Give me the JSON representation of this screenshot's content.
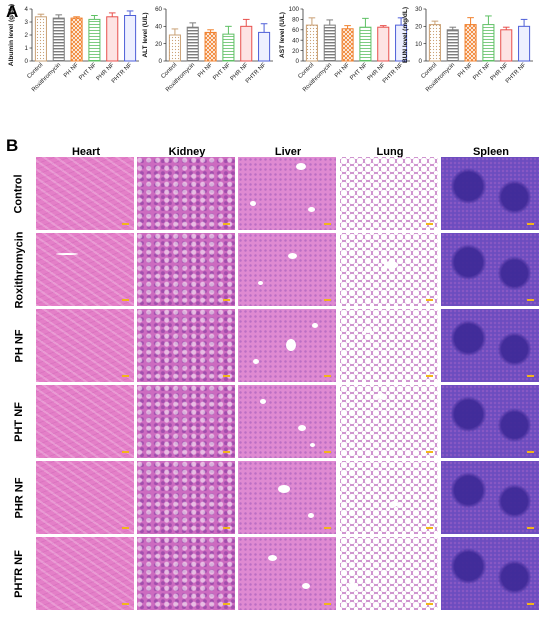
{
  "panel_a_label": "A",
  "panel_b_label": "B",
  "groups": [
    "Control",
    "Roxithromycin",
    "PH NF",
    "PHT NF",
    "PHR NF",
    "PHTR NF"
  ],
  "organs": [
    "Heart",
    "Kidney",
    "Liver",
    "Lung",
    "Spleen"
  ],
  "colors": {
    "Control": "#c9a074",
    "Roxithromycin": "#7d7d7d",
    "PH NF": "#f07f2b",
    "PHT NF": "#5ec064",
    "PHR NF": "#e8504c",
    "PHTR NF": "#4e5fd8",
    "scale_bar": "#f2b51a"
  },
  "chart_data": [
    {
      "type": "bar",
      "ylabel": "Albumin level (g/dL)",
      "categories": [
        "Control",
        "Roxithromycin",
        "PH NF",
        "PHT NF",
        "PHR NF",
        "PHTR NF"
      ],
      "values": [
        3.4,
        3.3,
        3.3,
        3.2,
        3.4,
        3.5
      ],
      "errors": [
        0.2,
        0.25,
        0.1,
        0.3,
        0.3,
        0.35
      ],
      "ylim": [
        0,
        4
      ],
      "yticks": [
        "0",
        "1",
        "2",
        "3",
        "4"
      ]
    },
    {
      "type": "bar",
      "ylabel": "ALT level (U/L)",
      "categories": [
        "Control",
        "Roxithromycin",
        "PH NF",
        "PHT NF",
        "PHR NF",
        "PHTR NF"
      ],
      "values": [
        30,
        39,
        33,
        31,
        40,
        33
      ],
      "errors": [
        7,
        5,
        3,
        9,
        8,
        10
      ],
      "ylim": [
        0,
        60
      ],
      "yticks": [
        "0",
        "20",
        "40",
        "60"
      ]
    },
    {
      "type": "bar",
      "ylabel": "AST level (U/L)",
      "categories": [
        "Control",
        "Roxithromycin",
        "PH NF",
        "PHT NF",
        "PHR NF",
        "PHTR NF"
      ],
      "values": [
        69,
        69,
        62,
        65,
        65,
        69
      ],
      "errors": [
        14,
        10,
        6,
        17,
        3,
        14
      ],
      "ylim": [
        0,
        100
      ],
      "yticks": [
        "0",
        "20",
        "40",
        "60",
        "80",
        "100"
      ]
    },
    {
      "type": "bar",
      "ylabel": "BUN level (mg/dL)",
      "categories": [
        "Control",
        "Roxithromycin",
        "PH NF",
        "PHT NF",
        "PHR NF",
        "PHTR NF"
      ],
      "values": [
        21,
        18,
        21,
        21,
        18,
        20
      ],
      "errors": [
        2,
        1.5,
        4,
        5,
        1.5,
        4
      ],
      "ylim": [
        0,
        30
      ],
      "yticks": [
        "0",
        "10",
        "20",
        "30"
      ]
    }
  ]
}
